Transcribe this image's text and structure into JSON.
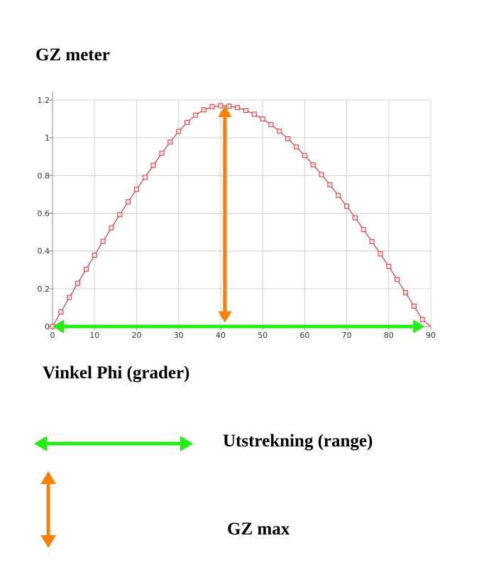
{
  "labels": {
    "y_title": "GZ meter",
    "x_title": "Vinkel Phi (grader)",
    "legend_range": "Utstrekning (range)",
    "legend_gzmax": "GZ max"
  },
  "colors": {
    "curve": "#e0363c",
    "range_arrow": "#22ee11",
    "gzmax_arrow": "#ff8000",
    "grid": "#d0d0d0"
  },
  "chart_data": {
    "type": "line",
    "title": "",
    "xlabel": "Vinkel Phi (grader)",
    "ylabel": "GZ meter",
    "xlim": [
      0,
      90
    ],
    "ylim": [
      0,
      1.2
    ],
    "xticks": [
      "0",
      "10",
      "20",
      "30",
      "40",
      "50",
      "60",
      "70",
      "80",
      "90"
    ],
    "yticks": [
      "0",
      "0.2",
      "0.4",
      "0.6",
      "0.8",
      "1",
      "1.2"
    ],
    "grid": true,
    "marker": "square",
    "series": [
      {
        "x": [
          0,
          2,
          4,
          6,
          8,
          10,
          12,
          14,
          16,
          18,
          20,
          22,
          24,
          26,
          28,
          30,
          32,
          34,
          36,
          38,
          40,
          42,
          44,
          46,
          48,
          50,
          52,
          54,
          56,
          58,
          60,
          62,
          64,
          66,
          68,
          70,
          72,
          74,
          76,
          78,
          80,
          82,
          84,
          86,
          88
        ],
        "y": [
          0,
          0.077,
          0.154,
          0.229,
          0.304,
          0.378,
          0.451,
          0.523,
          0.593,
          0.661,
          0.727,
          0.79,
          0.854,
          0.918,
          0.978,
          1.034,
          1.081,
          1.12,
          1.148,
          1.165,
          1.17,
          1.168,
          1.16,
          1.145,
          1.125,
          1.1,
          1.07,
          1.035,
          0.995,
          0.952,
          0.906,
          0.857,
          0.805,
          0.751,
          0.695,
          0.637,
          0.576,
          0.514,
          0.45,
          0.385,
          0.318,
          0.249,
          0.179,
          0.108,
          0.037
        ]
      }
    ],
    "annotations": [
      {
        "type": "double-arrow",
        "orientation": "horizontal",
        "from": [
          0,
          0
        ],
        "to": [
          88.5,
          0
        ],
        "meaning": "range"
      },
      {
        "type": "double-arrow",
        "orientation": "vertical",
        "from": [
          41,
          0.02
        ],
        "to": [
          41,
          1.17
        ],
        "meaning": "gz-max"
      }
    ]
  }
}
